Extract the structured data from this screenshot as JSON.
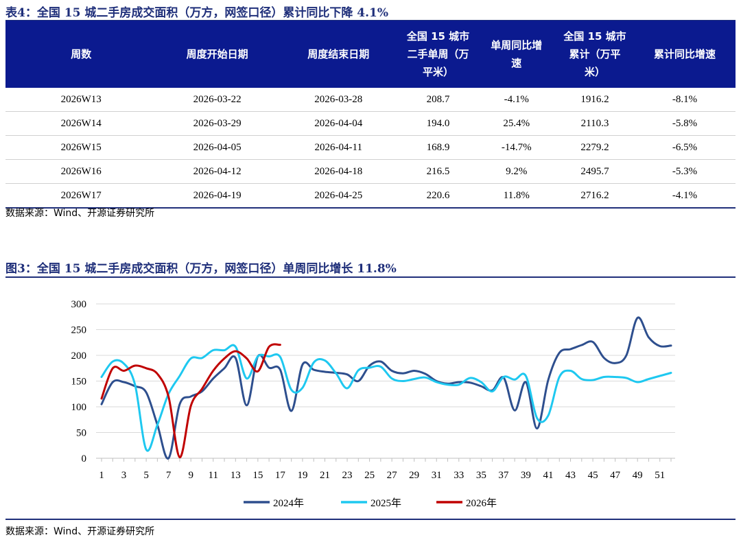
{
  "table": {
    "title": "表4：全国 15 城二手房成交面积（万方，网签口径）累计同比下降 4.1%",
    "headers": [
      [
        "周数"
      ],
      [
        "周度开始日期"
      ],
      [
        "周度结束日期"
      ],
      [
        "全国 15 城市",
        "二手单周（万",
        "平米）"
      ],
      [
        "单周同比增",
        "速"
      ],
      [
        "全国 15 城市",
        "累计（万平",
        "米）"
      ],
      [
        "累计同比增速"
      ]
    ],
    "rows": [
      [
        "2026W13",
        "2026-03-22",
        "2026-03-28",
        "208.7",
        "-4.1%",
        "1916.2",
        "-8.1%"
      ],
      [
        "2026W14",
        "2026-03-29",
        "2026-04-04",
        "194.0",
        "25.4%",
        "2110.3",
        "-5.8%"
      ],
      [
        "2026W15",
        "2026-04-05",
        "2026-04-11",
        "168.9",
        "-14.7%",
        "2279.2",
        "-6.5%"
      ],
      [
        "2026W16",
        "2026-04-12",
        "2026-04-18",
        "216.5",
        "9.2%",
        "2495.7",
        "-5.3%"
      ],
      [
        "2026W17",
        "2026-04-19",
        "2026-04-25",
        "220.6",
        "11.8%",
        "2716.2",
        "-4.1%"
      ]
    ],
    "source": "数据来源：Wind、开源证券研究所"
  },
  "chart": {
    "title": "图3：全国 15 城二手房成交面积（万方，网签口径）单周同比增长 11.8%",
    "source": "数据来源：Wind、开源证券研究所"
  },
  "chart_data": {
    "type": "line",
    "title": "图3：全国 15 城二手房成交面积（万方，网签口径）单周同比增长 11.8%",
    "xlabel": "",
    "ylabel": "",
    "ylim": [
      0,
      300
    ],
    "yticks": [
      0,
      50,
      100,
      150,
      200,
      250,
      300
    ],
    "xlim": [
      1,
      52
    ],
    "xticks": [
      1,
      3,
      5,
      7,
      9,
      11,
      13,
      15,
      17,
      19,
      21,
      23,
      25,
      27,
      29,
      31,
      33,
      35,
      37,
      39,
      41,
      43,
      45,
      47,
      49,
      51
    ],
    "grid": "horizontal",
    "legend_position": "bottom",
    "series": [
      {
        "name": "2024年",
        "color": "#2e4f8e",
        "x": [
          1,
          2,
          3,
          4,
          5,
          6,
          7,
          8,
          9,
          10,
          11,
          12,
          13,
          14,
          15,
          16,
          17,
          18,
          19,
          20,
          21,
          22,
          23,
          24,
          25,
          26,
          27,
          28,
          29,
          30,
          31,
          32,
          33,
          34,
          35,
          36,
          37,
          38,
          39,
          40,
          41,
          42,
          43,
          44,
          45,
          46,
          47,
          48,
          49,
          50,
          51,
          52
        ],
        "values": [
          105,
          148,
          148,
          140,
          128,
          65,
          0,
          105,
          120,
          130,
          155,
          175,
          195,
          103,
          198,
          176,
          172,
          92,
          182,
          172,
          168,
          166,
          163,
          150,
          180,
          188,
          170,
          165,
          170,
          164,
          150,
          145,
          148,
          147,
          140,
          132,
          157,
          93,
          148,
          58,
          152,
          205,
          212,
          220,
          226,
          195,
          185,
          200,
          273,
          235,
          218,
          219
        ]
      },
      {
        "name": "2025年",
        "color": "#1ec8f0",
        "x": [
          1,
          2,
          3,
          4,
          5,
          6,
          7,
          8,
          9,
          10,
          11,
          12,
          13,
          14,
          15,
          16,
          17,
          18,
          19,
          20,
          21,
          22,
          23,
          24,
          25,
          26,
          27,
          28,
          29,
          30,
          31,
          32,
          33,
          34,
          35,
          36,
          37,
          38,
          39,
          40,
          41,
          42,
          43,
          44,
          45,
          46,
          47,
          48,
          49,
          50,
          51,
          52
        ],
        "values": [
          158,
          188,
          184,
          143,
          17,
          65,
          125,
          160,
          194,
          195,
          210,
          210,
          217,
          155,
          198,
          198,
          197,
          133,
          137,
          186,
          190,
          165,
          136,
          171,
          176,
          178,
          155,
          150,
          154,
          157,
          148,
          143,
          143,
          156,
          148,
          130,
          158,
          153,
          160,
          78,
          83,
          158,
          170,
          154,
          152,
          158,
          158,
          156,
          148,
          154,
          160,
          166
        ]
      },
      {
        "name": "2026年",
        "color": "#c00000",
        "x": [
          1,
          2,
          3,
          4,
          5,
          6,
          7,
          8,
          9,
          10,
          11,
          12,
          13,
          14,
          15,
          16,
          17
        ],
        "values": [
          116,
          175,
          170,
          180,
          175,
          164,
          120,
          2,
          102,
          135,
          170,
          194,
          208,
          194,
          169,
          216.5,
          220.6
        ]
      }
    ]
  }
}
